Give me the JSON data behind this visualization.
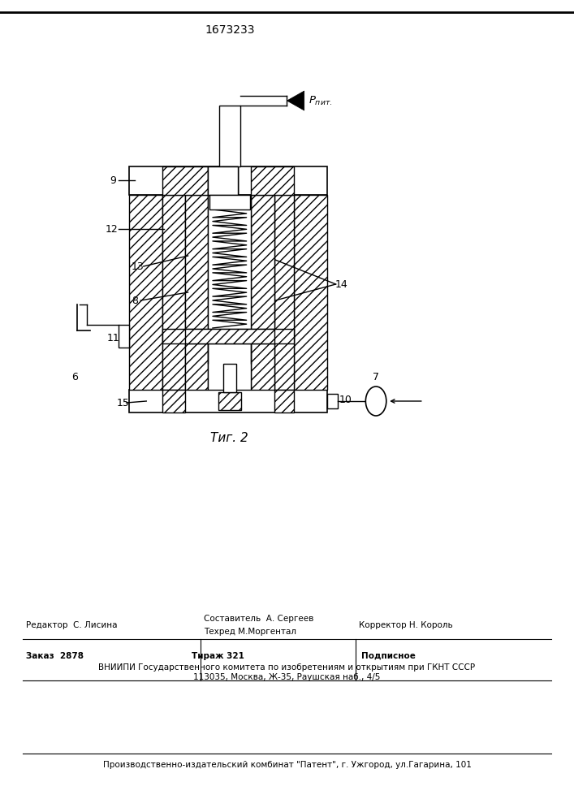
{
  "title_number": "1673233",
  "fig_label": "Τиг. 2",
  "bg": "#ffffff",
  "footer": {
    "editor": "Редактор  С. Лисина",
    "composer": "Составитель  А. Сергеев",
    "techred": "Техред М.Моргентал",
    "corrector": "Корректор Н. Король",
    "order": "Заказ  2878",
    "tirazh": "Тираж 321",
    "podpisnoe": "Подписное",
    "vniip1": "ВНИИПИ Государственного комитета по изобретениям и открытиям при ГКНТ СССР",
    "vniip2": "113035, Москва, Ж-35, Раушская наб., 4/5",
    "patent": "Производственно-издательский комбинат \"Патент\", г. Ужгород, ул.Гагарина, 101"
  }
}
